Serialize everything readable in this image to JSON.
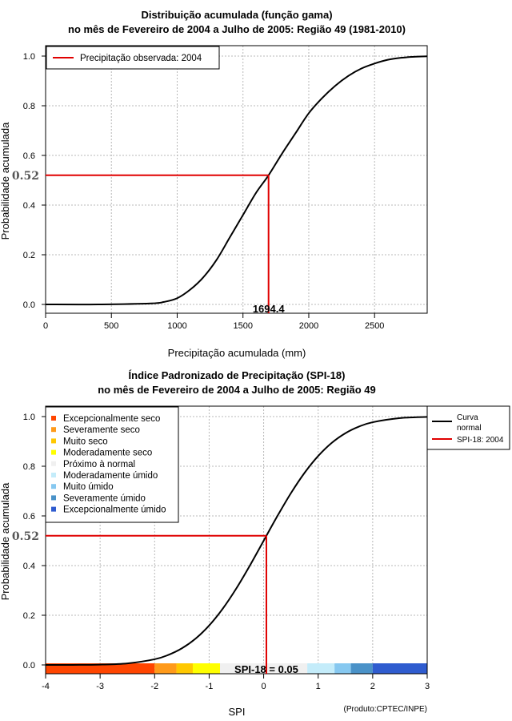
{
  "chart_data": [
    {
      "type": "line",
      "title": "Distribuição acumulada (função gama)",
      "subtitle": "no mês de Fevereiro de 2004 a Julho de 2005: Região 49 (1981-2010)",
      "xlabel": "Precipitação acumulada (mm)",
      "ylabel": "Probabilidade acumulada",
      "xlim": [
        0,
        2900
      ],
      "ylim": [
        0,
        1
      ],
      "xticks": [
        "0",
        "500",
        "1000",
        "1500",
        "2000",
        "2500"
      ],
      "xtick_values": [
        0,
        500,
        1000,
        1500,
        2000,
        2500
      ],
      "yticks": [
        "0.0",
        "0.2",
        "0.4",
        "0.6",
        "0.8",
        "1.0"
      ],
      "ytick_values": [
        0,
        0.2,
        0.4,
        0.6,
        0.8,
        1.0
      ],
      "grid": true,
      "legend": {
        "position": "top-left",
        "entries": [
          {
            "label": "Precipitação observada: 2004",
            "color": "#e00000"
          }
        ]
      },
      "curve": {
        "x": [
          0,
          400,
          800,
          900,
          1000,
          1100,
          1200,
          1300,
          1400,
          1500,
          1600,
          1694.4,
          1800,
          1900,
          2000,
          2100,
          2200,
          2300,
          2400,
          2500,
          2600,
          2700,
          2800,
          2900
        ],
        "y": [
          0.0,
          0.0,
          0.004,
          0.01,
          0.025,
          0.06,
          0.11,
          0.18,
          0.27,
          0.36,
          0.45,
          0.52,
          0.61,
          0.69,
          0.77,
          0.83,
          0.88,
          0.92,
          0.95,
          0.97,
          0.985,
          0.993,
          0.997,
          0.999
        ],
        "color": "#000000"
      },
      "marker": {
        "x": 1694.4,
        "y": 0.52,
        "x_label": "1694.4",
        "y_label": "0.52",
        "color": "#e00000"
      }
    },
    {
      "type": "line",
      "title": "Índice Padronizado de Precipitação (SPI-18)",
      "subtitle": "no mês de Fevereiro de 2004 a Julho de 2005: Região 49",
      "xlabel": "SPI",
      "ylabel": "Probabilidade acumulada",
      "xlim": [
        -4,
        3
      ],
      "ylim": [
        0,
        1
      ],
      "xticks": [
        "-4",
        "-3",
        "-2",
        "-1",
        "0",
        "1",
        "2",
        "3"
      ],
      "xtick_values": [
        -4,
        -3,
        -2,
        -1,
        0,
        1,
        2,
        3
      ],
      "yticks": [
        "0.0",
        "0.2",
        "0.4",
        "0.6",
        "0.8",
        "1.0"
      ],
      "ytick_values": [
        0,
        0.2,
        0.4,
        0.6,
        0.8,
        1.0
      ],
      "grid": true,
      "category_legend": {
        "position": "top-left",
        "entries": [
          {
            "label": "Excepcionalmente seco",
            "color": "#ff4500"
          },
          {
            "label": "Severamente seco",
            "color": "#ff9a1a"
          },
          {
            "label": "Muito seco",
            "color": "#ffc800"
          },
          {
            "label": "Moderadamente seco",
            "color": "#ffff00"
          },
          {
            "label": "Próximo à normal",
            "color": "#f0f0f0"
          },
          {
            "label": "Moderadamente úmido",
            "color": "#c4ecfa"
          },
          {
            "label": "Muito úmido",
            "color": "#86c8f0"
          },
          {
            "label": "Severamente úmido",
            "color": "#4a92c8"
          },
          {
            "label": "Excepcionalmente úmido",
            "color": "#2f5ccf"
          }
        ]
      },
      "line_legend": {
        "position": "outside-top-right",
        "entries": [
          {
            "label_lines": [
              "Curva",
              "normal"
            ],
            "color": "#000000"
          },
          {
            "label_lines": [
              "SPI-18: 2004"
            ],
            "color": "#e00000"
          }
        ]
      },
      "spi_bands": [
        {
          "from": -4,
          "to": -2,
          "color": "#ff4500"
        },
        {
          "from": -2,
          "to": -1.6,
          "color": "#ff9a1a"
        },
        {
          "from": -1.6,
          "to": -1.3,
          "color": "#ffc800"
        },
        {
          "from": -1.3,
          "to": -0.8,
          "color": "#ffff00"
        },
        {
          "from": -0.8,
          "to": 0.8,
          "color": "#f0f0f0"
        },
        {
          "from": 0.8,
          "to": 1.3,
          "color": "#c4ecfa"
        },
        {
          "from": 1.3,
          "to": 1.6,
          "color": "#86c8f0"
        },
        {
          "from": 1.6,
          "to": 2,
          "color": "#4a92c8"
        },
        {
          "from": 2,
          "to": 3,
          "color": "#2f5ccf"
        }
      ],
      "curve": {
        "x": [
          -4,
          -3.5,
          -3,
          -2.5,
          -2,
          -1.75,
          -1.5,
          -1.25,
          -1,
          -0.75,
          -0.5,
          -0.25,
          0,
          0.05,
          0.25,
          0.5,
          0.75,
          1,
          1.25,
          1.5,
          1.75,
          2,
          2.5,
          3
        ],
        "y": [
          3e-05,
          0.0002,
          0.0013,
          0.0062,
          0.0228,
          0.0401,
          0.0668,
          0.1056,
          0.1587,
          0.2266,
          0.3085,
          0.4013,
          0.5,
          0.52,
          0.5987,
          0.6915,
          0.7734,
          0.8413,
          0.8944,
          0.9332,
          0.9599,
          0.9772,
          0.9938,
          0.9987
        ],
        "color": "#000000"
      },
      "marker": {
        "x": 0.05,
        "y": 0.52,
        "x_label": "SPI-18 = 0.05",
        "y_label": "0.52",
        "color": "#e00000"
      },
      "credit": "(Produto:CPTEC/INPE)"
    }
  ]
}
